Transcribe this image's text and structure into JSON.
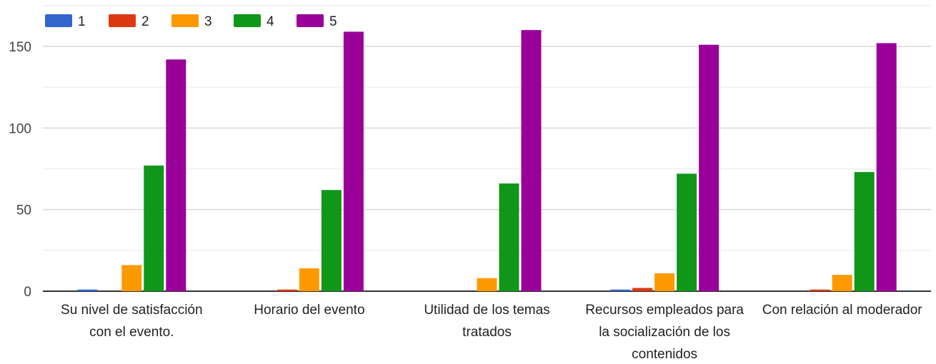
{
  "chart_data": {
    "type": "bar",
    "categories": [
      [
        "Su nivel de satisfacción",
        "con el evento."
      ],
      [
        "Horario del evento"
      ],
      [
        "Utilidad de los temas",
        "tratados"
      ],
      [
        "Recursos empleados para",
        "la socialización de los",
        "contenidos"
      ],
      [
        "Con relación al moderador"
      ]
    ],
    "series": [
      {
        "name": "1",
        "color": "#3366cc",
        "values": [
          1,
          0,
          0,
          1,
          0
        ]
      },
      {
        "name": "2",
        "color": "#dc3912",
        "values": [
          0,
          1,
          0,
          2,
          1
        ]
      },
      {
        "name": "3",
        "color": "#ff9900",
        "values": [
          16,
          14,
          8,
          11,
          10
        ]
      },
      {
        "name": "4",
        "color": "#109618",
        "values": [
          77,
          62,
          66,
          72,
          73
        ]
      },
      {
        "name": "5",
        "color": "#990099",
        "values": [
          142,
          159,
          160,
          151,
          152
        ]
      }
    ],
    "yticks": [
      0,
      50,
      100,
      150
    ],
    "ylim": [
      0,
      170
    ],
    "grid": true,
    "legend_position": "top-left"
  }
}
